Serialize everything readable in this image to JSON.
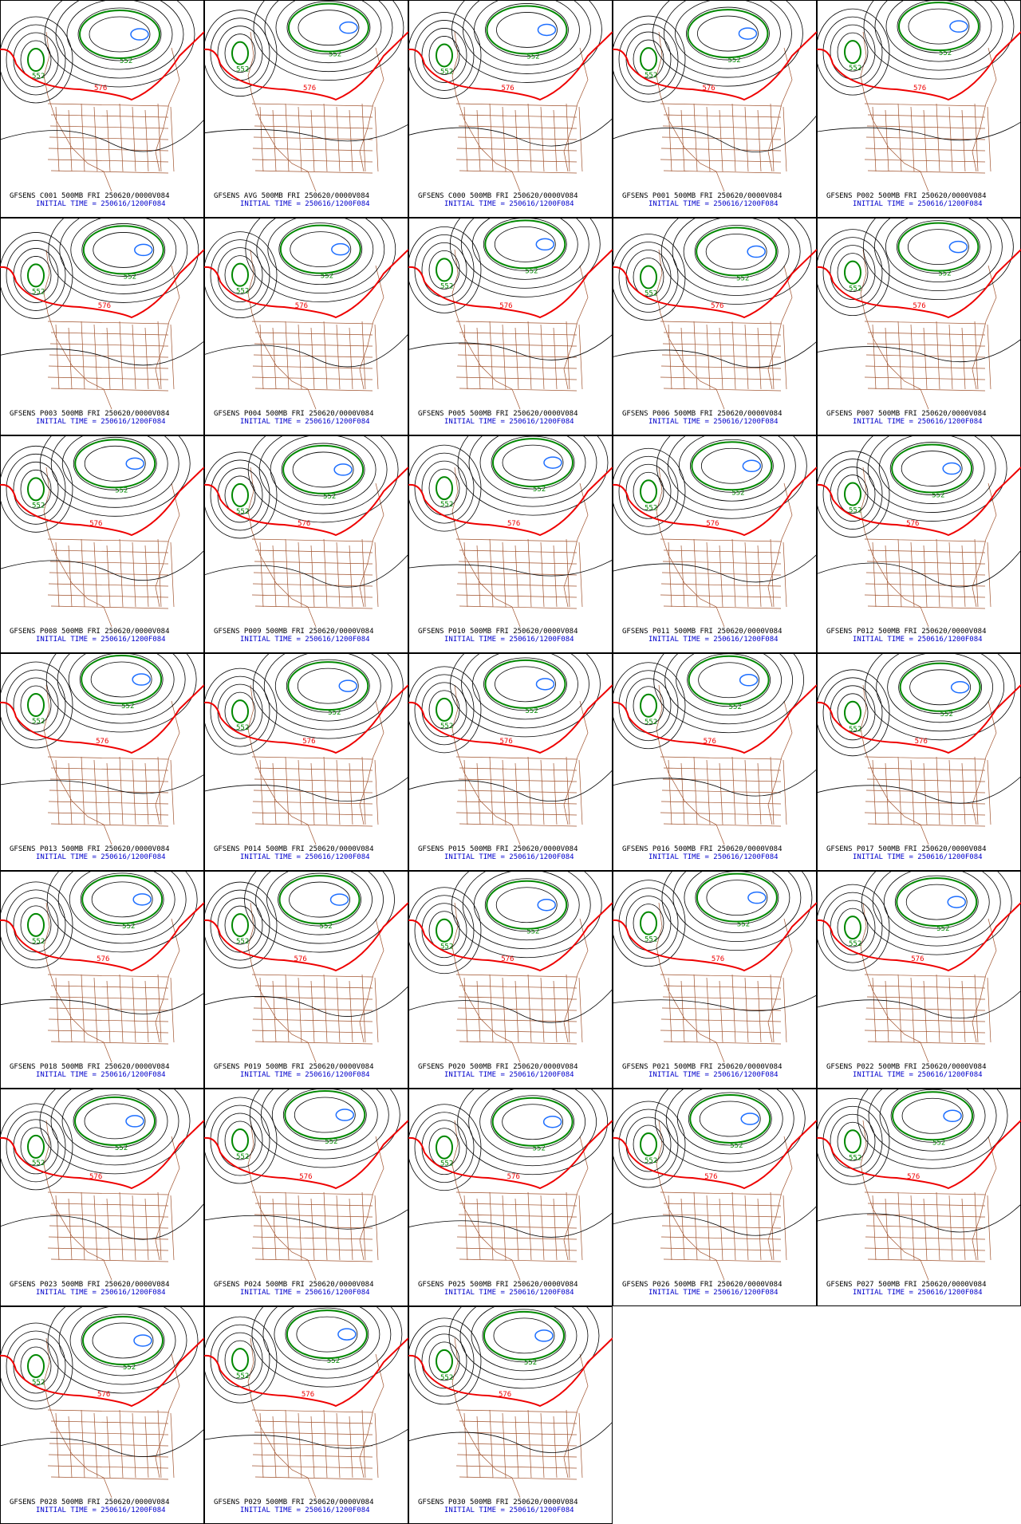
{
  "contour_labels": {
    "low": "552",
    "high": "576"
  },
  "panels": [
    {
      "run": "GFSENS C001 500MB FRI 250620/0000V084",
      "init": "INITIAL TIME = 250616/1200F084"
    },
    {
      "run": "GFSENS AVG 500MB FRI 250620/0000V084",
      "init": "INITIAL TIME = 250616/1200F084"
    },
    {
      "run": "GFSENS C000 500MB FRI 250620/0000V084",
      "init": "INITIAL TIME = 250616/1200F084"
    },
    {
      "run": "GFSENS P001 500MB FRI 250620/0000V084",
      "init": "INITIAL TIME = 250616/1200F084"
    },
    {
      "run": "GFSENS P002 500MB FRI 250620/0000V084",
      "init": "INITIAL TIME = 250616/1200F084"
    },
    {
      "run": "GFSENS P003 500MB FRI 250620/0000V084",
      "init": "INITIAL TIME = 250616/1200F084"
    },
    {
      "run": "GFSENS P004 500MB FRI 250620/0000V084",
      "init": "INITIAL TIME = 250616/1200F084"
    },
    {
      "run": "GFSENS P005 500MB FRI 250620/0000V084",
      "init": "INITIAL TIME = 250616/1200F084"
    },
    {
      "run": "GFSENS P006 500MB FRI 250620/0000V084",
      "init": "INITIAL TIME = 250616/1200F084"
    },
    {
      "run": "GFSENS P007 500MB FRI 250620/0000V084",
      "init": "INITIAL TIME = 250616/1200F084"
    },
    {
      "run": "GFSENS P008 500MB FRI 250620/0000V084",
      "init": "INITIAL TIME = 250616/1200F084"
    },
    {
      "run": "GFSENS P009 500MB FRI 250620/0000V084",
      "init": "INITIAL TIME = 250616/1200F084"
    },
    {
      "run": "GFSENS P010 500MB FRI 250620/0000V084",
      "init": "INITIAL TIME = 250616/1200F084"
    },
    {
      "run": "GFSENS P011 500MB FRI 250620/0000V084",
      "init": "INITIAL TIME = 250616/1200F084"
    },
    {
      "run": "GFSENS P012 500MB FRI 250620/0000V084",
      "init": "INITIAL TIME = 250616/1200F084"
    },
    {
      "run": "GFSENS P013 500MB FRI 250620/0000V084",
      "init": "INITIAL TIME = 250616/1200F084"
    },
    {
      "run": "GFSENS P014 500MB FRI 250620/0000V084",
      "init": "INITIAL TIME = 250616/1200F084"
    },
    {
      "run": "GFSENS P015 500MB FRI 250620/0000V084",
      "init": "INITIAL TIME = 250616/1200F084"
    },
    {
      "run": "GFSENS P016 500MB FRI 250620/0000V084",
      "init": "INITIAL TIME = 250616/1200F084"
    },
    {
      "run": "GFSENS P017 500MB FRI 250620/0000V084",
      "init": "INITIAL TIME = 250616/1200F084"
    },
    {
      "run": "GFSENS P018 500MB FRI 250620/0000V084",
      "init": "INITIAL TIME = 250616/1200F084"
    },
    {
      "run": "GFSENS P019 500MB FRI 250620/0000V084",
      "init": "INITIAL TIME = 250616/1200F084"
    },
    {
      "run": "GFSENS P020 500MB FRI 250620/0000V084",
      "init": "INITIAL TIME = 250616/1200F084"
    },
    {
      "run": "GFSENS P021 500MB FRI 250620/0000V084",
      "init": "INITIAL TIME = 250616/1200F084"
    },
    {
      "run": "GFSENS P022 500MB FRI 250620/0000V084",
      "init": "INITIAL TIME = 250616/1200F084"
    },
    {
      "run": "GFSENS P023 500MB FRI 250620/0000V084",
      "init": "INITIAL TIME = 250616/1200F084"
    },
    {
      "run": "GFSENS P024 500MB FRI 250620/0000V084",
      "init": "INITIAL TIME = 250616/1200F084"
    },
    {
      "run": "GFSENS P025 500MB FRI 250620/0000V084",
      "init": "INITIAL TIME = 250616/1200F084"
    },
    {
      "run": "GFSENS P026 500MB FRI 250620/0000V084",
      "init": "INITIAL TIME = 250616/1200F084"
    },
    {
      "run": "GFSENS P027 500MB FRI 250620/0000V084",
      "init": "INITIAL TIME = 250616/1200F084"
    },
    {
      "run": "GFSENS P028 500MB FRI 250620/0000V084",
      "init": "INITIAL TIME = 250616/1200F084"
    },
    {
      "run": "GFSENS P029 500MB FRI 250620/0000V084",
      "init": "INITIAL TIME = 250616/1200F084"
    },
    {
      "run": "GFSENS P030 500MB FRI 250620/0000V084",
      "init": "INITIAL TIME = 250616/1200F084"
    }
  ]
}
